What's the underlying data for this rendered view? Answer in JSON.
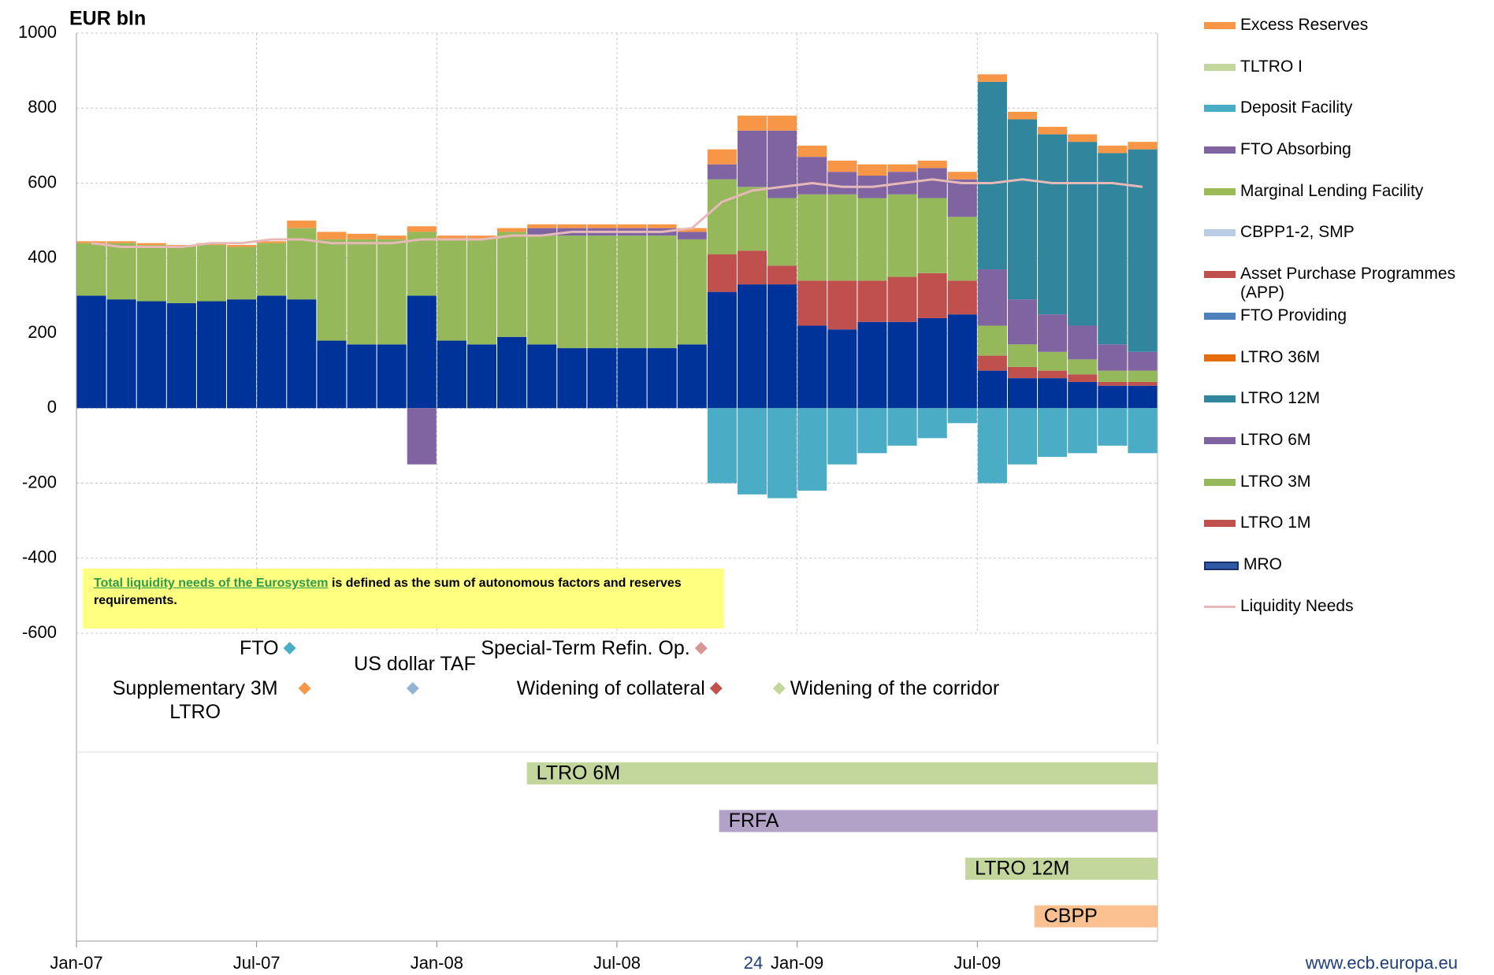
{
  "chart_data": {
    "type": "bar",
    "y_label": "EUR bln",
    "x": [
      0,
      1,
      2,
      3,
      4,
      5,
      6,
      7,
      8,
      9,
      10,
      11,
      12,
      13,
      14,
      15,
      16,
      17,
      18,
      19,
      20,
      21,
      22,
      23,
      24,
      25,
      26,
      27,
      28,
      29,
      30,
      31,
      32,
      33,
      34,
      35
    ],
    "xlim": [
      0,
      36
    ],
    "xticks": [
      {
        "value": 0,
        "label": "Jan-07"
      },
      {
        "value": 6,
        "label": "Jul-07"
      },
      {
        "value": 12,
        "label": "Jan-08"
      },
      {
        "value": 18,
        "label": "Jul-08"
      },
      {
        "value": 24,
        "label": "Jan-09"
      },
      {
        "value": 30,
        "label": "Jul-09"
      }
    ],
    "ylim": [
      -600,
      1000
    ],
    "yticks": [
      -600,
      -400,
      -200,
      0,
      200,
      400,
      600,
      800,
      1000
    ],
    "grid": true,
    "series": [
      {
        "name": "Excess Reserves",
        "color": "#f79646",
        "values": [
          5,
          5,
          5,
          5,
          5,
          5,
          5,
          20,
          20,
          15,
          10,
          15,
          10,
          10,
          10,
          10,
          10,
          10,
          10,
          10,
          10,
          40,
          40,
          40,
          30,
          30,
          30,
          20,
          20,
          20,
          20,
          20,
          20,
          20,
          20,
          20
        ]
      },
      {
        "name": "TLTRO I",
        "color": "#c3d69b",
        "values": [
          0,
          0,
          0,
          0,
          0,
          0,
          0,
          0,
          0,
          0,
          0,
          0,
          0,
          0,
          0,
          0,
          0,
          0,
          0,
          0,
          0,
          0,
          0,
          0,
          0,
          0,
          0,
          0,
          0,
          0,
          0,
          0,
          0,
          0,
          0,
          0
        ]
      },
      {
        "name": "Deposit Facility",
        "color": "#4bacc6",
        "values": [
          0,
          0,
          0,
          0,
          0,
          0,
          0,
          0,
          0,
          0,
          0,
          0,
          0,
          0,
          0,
          0,
          0,
          0,
          0,
          0,
          0,
          -200,
          -230,
          -240,
          -220,
          -150,
          -120,
          -100,
          -80,
          -40,
          -200,
          -150,
          -130,
          -120,
          -100,
          -120
        ]
      },
      {
        "name": "FTO Absorbing",
        "color": "#8064a2",
        "values": [
          0,
          0,
          0,
          0,
          0,
          0,
          0,
          0,
          0,
          0,
          0,
          -150,
          0,
          0,
          0,
          0,
          0,
          0,
          0,
          0,
          0,
          0,
          0,
          0,
          0,
          0,
          0,
          0,
          0,
          0,
          0,
          0,
          0,
          0,
          0,
          0
        ]
      },
      {
        "name": "Marginal Lending Facility",
        "color": "#9bbb59",
        "values": [
          0,
          0,
          0,
          0,
          0,
          0,
          0,
          0,
          0,
          0,
          0,
          0,
          0,
          0,
          0,
          0,
          0,
          0,
          0,
          0,
          0,
          0,
          0,
          0,
          0,
          0,
          0,
          0,
          0,
          0,
          0,
          0,
          0,
          0,
          0,
          0
        ]
      },
      {
        "name": "CBPP1-2, SMP",
        "color": "#b9cde5",
        "values": [
          0,
          0,
          0,
          0,
          0,
          0,
          0,
          0,
          0,
          0,
          0,
          0,
          0,
          0,
          0,
          0,
          0,
          0,
          0,
          0,
          0,
          0,
          0,
          0,
          0,
          0,
          0,
          0,
          0,
          0,
          0,
          0,
          0,
          0,
          0,
          0
        ]
      },
      {
        "name": "Asset Purchase Programmes (APP)",
        "color": "#c0504d",
        "values": [
          0,
          0,
          0,
          0,
          0,
          0,
          0,
          0,
          0,
          0,
          0,
          0,
          0,
          0,
          0,
          0,
          0,
          0,
          0,
          0,
          0,
          0,
          0,
          0,
          0,
          0,
          0,
          0,
          0,
          0,
          0,
          0,
          0,
          0,
          0,
          0
        ]
      },
      {
        "name": "FTO Providing",
        "color": "#4f81bd",
        "values": [
          0,
          0,
          0,
          0,
          0,
          0,
          0,
          0,
          0,
          0,
          0,
          0,
          0,
          0,
          0,
          0,
          0,
          0,
          0,
          0,
          0,
          0,
          0,
          0,
          0,
          0,
          0,
          0,
          0,
          0,
          0,
          0,
          0,
          0,
          0,
          0
        ]
      },
      {
        "name": "LTRO 36M",
        "color": "#e46c0a",
        "values": [
          0,
          0,
          0,
          0,
          0,
          0,
          0,
          0,
          0,
          0,
          0,
          0,
          0,
          0,
          0,
          0,
          0,
          0,
          0,
          0,
          0,
          0,
          0,
          0,
          0,
          0,
          0,
          0,
          0,
          0,
          0,
          0,
          0,
          0,
          0,
          0
        ]
      },
      {
        "name": "LTRO 12M",
        "color": "#31859c",
        "values": [
          0,
          0,
          0,
          0,
          0,
          0,
          0,
          0,
          0,
          0,
          0,
          0,
          0,
          0,
          0,
          0,
          0,
          0,
          0,
          0,
          0,
          0,
          0,
          0,
          0,
          0,
          0,
          0,
          0,
          0,
          500,
          480,
          480,
          490,
          510,
          540
        ]
      },
      {
        "name": "LTRO 6M",
        "color": "#8064a2",
        "values": [
          0,
          0,
          0,
          0,
          0,
          0,
          0,
          0,
          0,
          0,
          0,
          0,
          0,
          0,
          0,
          20,
          20,
          20,
          20,
          20,
          20,
          40,
          150,
          180,
          100,
          60,
          60,
          60,
          80,
          100,
          150,
          120,
          100,
          90,
          70,
          50
        ]
      },
      {
        "name": "LTRO 3M",
        "color": "#95b85a",
        "values": [
          140,
          150,
          150,
          150,
          150,
          140,
          140,
          190,
          270,
          280,
          280,
          170,
          270,
          280,
          280,
          290,
          300,
          300,
          300,
          300,
          280,
          200,
          170,
          180,
          230,
          230,
          220,
          220,
          200,
          170,
          80,
          60,
          50,
          40,
          30,
          30
        ]
      },
      {
        "name": "LTRO 1M",
        "color": "#c0504d",
        "values": [
          0,
          0,
          0,
          0,
          0,
          0,
          0,
          0,
          0,
          0,
          0,
          0,
          0,
          0,
          0,
          0,
          0,
          0,
          0,
          0,
          0,
          100,
          90,
          50,
          120,
          130,
          110,
          120,
          120,
          90,
          40,
          30,
          20,
          20,
          10,
          10
        ]
      },
      {
        "name": "MRO",
        "color": "#003399",
        "values": [
          300,
          290,
          285,
          280,
          285,
          290,
          300,
          290,
          180,
          170,
          170,
          300,
          180,
          170,
          190,
          170,
          160,
          160,
          160,
          160,
          170,
          310,
          330,
          330,
          220,
          210,
          230,
          230,
          240,
          250,
          100,
          80,
          80,
          70,
          60,
          60
        ]
      }
    ],
    "line_series": {
      "name": "Liquidity Needs",
      "color": "#e6b9b8",
      "values": [
        440,
        430,
        430,
        430,
        440,
        440,
        450,
        450,
        440,
        440,
        440,
        450,
        450,
        450,
        460,
        460,
        470,
        470,
        470,
        470,
        480,
        550,
        580,
        590,
        600,
        590,
        590,
        600,
        610,
        600,
        600,
        610,
        600,
        600,
        600,
        590
      ]
    },
    "note": {
      "link": "Total liquidity needs of the Eurosystem",
      "text": " is defined as the sum of autonomous factors and reserves requirements."
    },
    "events": [
      {
        "label": "FTO",
        "x": 7.1,
        "color": "#4bacc6"
      },
      {
        "label": "Supplementary 3M LTRO",
        "x": 7.6,
        "color": "#f79646"
      },
      {
        "label": "US dollar TAF",
        "x": 11.2,
        "color": "#95b3d7"
      },
      {
        "label": "Special-Term Refin. Op.",
        "x": 20.8,
        "color": "#d99694"
      },
      {
        "label": "Widening of collateral",
        "x": 21.3,
        "color": "#c0504d"
      },
      {
        "label": "Widening of the corridor",
        "x": 23.4,
        "color": "#c3d69b"
      }
    ],
    "timeline": [
      {
        "label": "LTRO 6M",
        "start": 15,
        "end": 36,
        "color": "#c3d69b"
      },
      {
        "label": "FRFA",
        "start": 21.4,
        "end": 36,
        "color": "#b3a2c7"
      },
      {
        "label": "LTRO 12M",
        "start": 29.6,
        "end": 36,
        "color": "#c3d69b"
      },
      {
        "label": "CBPP",
        "start": 31.9,
        "end": 36,
        "color": "#fac090"
      }
    ],
    "page_number": "24",
    "source": "www.ecb.europa.eu"
  }
}
